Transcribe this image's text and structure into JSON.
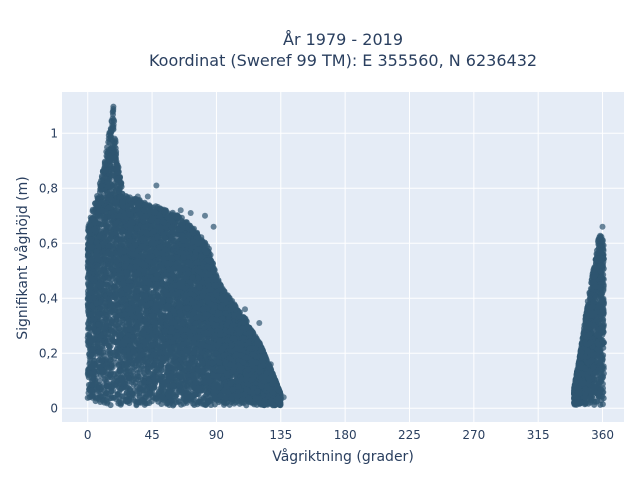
{
  "chart_data": {
    "type": "scatter",
    "title_line1": "År 1979 - 2019",
    "title_line2": "Koordinat (Sweref 99 TM): E 355560, N 6236432",
    "xlabel": "Vågriktning (grader)",
    "ylabel": "Signifikant våghöjd (m)",
    "xlim": [
      -18,
      375
    ],
    "ylim": [
      -0.05,
      1.15
    ],
    "xticks": [
      0,
      45,
      90,
      135,
      180,
      225,
      270,
      315,
      360
    ],
    "xtick_labels": [
      "0",
      "45",
      "90",
      "135",
      "180",
      "225",
      "270",
      "315",
      "360"
    ],
    "yticks": [
      0,
      0.2,
      0.4,
      0.6,
      0.8,
      1
    ],
    "ytick_labels": [
      "0",
      "0,2",
      "0,4",
      "0,6",
      "0,8",
      "1"
    ],
    "grid": true,
    "marker_color": "#2f5670",
    "background": "#e5ecf6",
    "envelope": [
      {
        "x": 0,
        "y": 0.66
      },
      {
        "x": 5,
        "y": 0.75
      },
      {
        "x": 10,
        "y": 0.85
      },
      {
        "x": 14,
        "y": 0.97
      },
      {
        "x": 18,
        "y": 1.1
      },
      {
        "x": 20,
        "y": 0.92
      },
      {
        "x": 25,
        "y": 0.78
      },
      {
        "x": 35,
        "y": 0.76
      },
      {
        "x": 45,
        "y": 0.74
      },
      {
        "x": 55,
        "y": 0.72
      },
      {
        "x": 65,
        "y": 0.7
      },
      {
        "x": 75,
        "y": 0.65
      },
      {
        "x": 80,
        "y": 0.62
      },
      {
        "x": 85,
        "y": 0.58
      },
      {
        "x": 90,
        "y": 0.48
      },
      {
        "x": 95,
        "y": 0.43
      },
      {
        "x": 100,
        "y": 0.4
      },
      {
        "x": 105,
        "y": 0.36
      },
      {
        "x": 110,
        "y": 0.33
      },
      {
        "x": 115,
        "y": 0.28
      },
      {
        "x": 120,
        "y": 0.24
      },
      {
        "x": 125,
        "y": 0.18
      },
      {
        "x": 130,
        "y": 0.12
      },
      {
        "x": 135,
        "y": 0.05
      },
      {
        "x": 340,
        "y": 0.07
      },
      {
        "x": 345,
        "y": 0.22
      },
      {
        "x": 350,
        "y": 0.4
      },
      {
        "x": 355,
        "y": 0.55
      },
      {
        "x": 358,
        "y": 0.64
      },
      {
        "x": 360,
        "y": 0.62
      },
      {
        "x": 361,
        "y": 0.6
      }
    ],
    "outliers": [
      {
        "x": 48,
        "y": 0.81
      },
      {
        "x": 42,
        "y": 0.77
      },
      {
        "x": 35,
        "y": 0.77
      },
      {
        "x": 65,
        "y": 0.72
      },
      {
        "x": 72,
        "y": 0.71
      },
      {
        "x": 82,
        "y": 0.7
      },
      {
        "x": 88,
        "y": 0.66
      },
      {
        "x": 110,
        "y": 0.36
      },
      {
        "x": 120,
        "y": 0.31
      },
      {
        "x": 128,
        "y": 0.16
      },
      {
        "x": 137,
        "y": 0.04
      },
      {
        "x": 360,
        "y": 0.66
      }
    ]
  }
}
